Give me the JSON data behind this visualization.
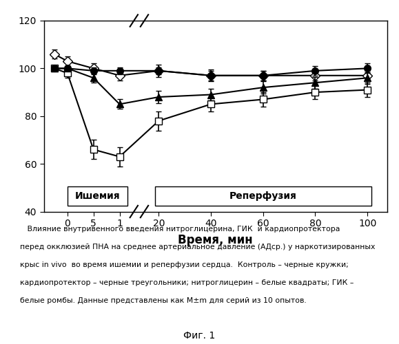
{
  "xlabel": "Время, мин",
  "ylim": [
    40,
    120
  ],
  "yticks": [
    40,
    60,
    80,
    100,
    120
  ],
  "background_color": "#ffffff",
  "control_x": [
    -5,
    0,
    5,
    15,
    20,
    40,
    60,
    80,
    100
  ],
  "control_y": [
    100,
    100,
    99,
    99,
    99,
    97,
    97,
    99,
    100
  ],
  "control_yerr": [
    1.0,
    1.0,
    1.5,
    1.5,
    1.5,
    2.0,
    2.0,
    2.0,
    2.0
  ],
  "cardio_x": [
    -5,
    0,
    5,
    15,
    20,
    40,
    60,
    80,
    100
  ],
  "cardio_y": [
    100,
    100,
    96,
    85,
    88,
    89,
    92,
    94,
    96
  ],
  "cardio_yerr": [
    1.0,
    1.0,
    2.0,
    2.0,
    2.5,
    2.5,
    2.5,
    2.5,
    2.5
  ],
  "nitro_x": [
    -5,
    0,
    5,
    15,
    20,
    40,
    60,
    80,
    100
  ],
  "nitro_y": [
    100,
    98,
    66,
    63,
    78,
    85,
    87,
    90,
    91
  ],
  "nitro_yerr": [
    1.0,
    2.0,
    4.0,
    4.0,
    4.0,
    3.0,
    3.0,
    3.0,
    3.0
  ],
  "gik_x": [
    -5,
    0,
    5,
    15,
    20,
    40,
    60,
    80,
    100
  ],
  "gik_y": [
    106,
    103,
    100,
    97,
    99,
    97,
    97,
    97,
    97
  ],
  "gik_yerr": [
    2.0,
    2.0,
    2.0,
    2.0,
    2.5,
    2.5,
    2.0,
    2.0,
    2.0
  ],
  "ischemia_label": "Ишемия",
  "reperfusion_label": "Реперфузия",
  "caption_line1": "   Влияние внутривенного введения нитроглицерина, ГИК  и кардиопротектора",
  "caption_line2": "перед окклюзией ПНА на среднее артериальное давление (АДср.) у наркотизированных",
  "caption_line3": "крыс in vivo  во время ишемии и реперфузии сердца.  Контроль – черные кружки;",
  "caption_line4": "кардиопротектор – черные треугольники; нитроглицерин – белые квадраты; ГИК –",
  "caption_line5": "белые ромбы. Данные представлены как M±m для серий из 10 опытов.",
  "fig_label": "Фиг. 1"
}
